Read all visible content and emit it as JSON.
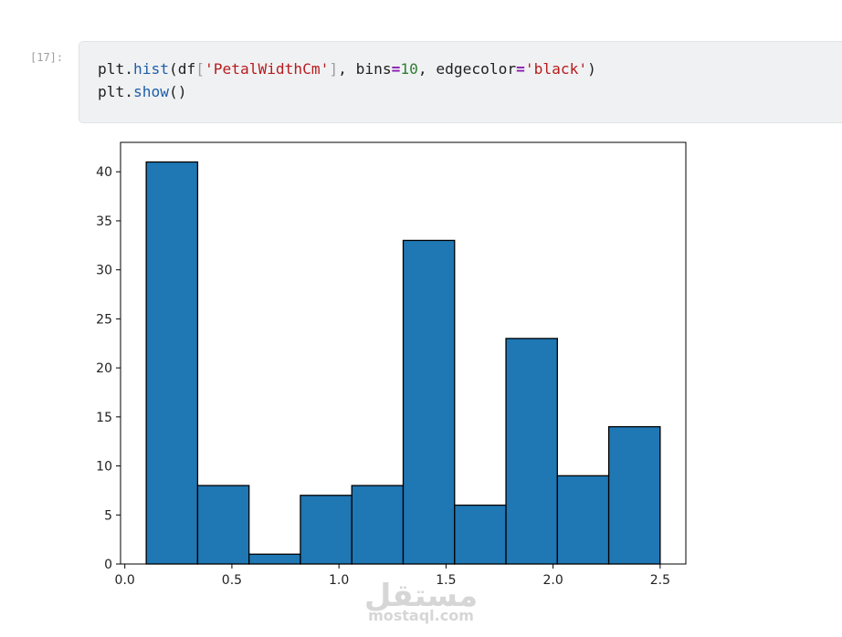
{
  "cell": {
    "prompt": "[17]:",
    "line1": {
      "p1": "plt.",
      "fn1": "hist",
      "p2": "(df",
      "b1": "[",
      "s1": "'PetalWidthCm'",
      "b2": "]",
      "p3": ", bins",
      "op1": "=",
      "n1": "10",
      "p4": ", edgecolor",
      "op2": "=",
      "s2": "'black'",
      "p5": ")"
    },
    "line2": {
      "p1": "plt.",
      "fn1": "show",
      "p2": "()"
    }
  },
  "watermark": {
    "arabic": "مستقل",
    "latin": "mostaql.com"
  },
  "chart_data": {
    "type": "bar",
    "title": "",
    "xlabel": "",
    "ylabel": "",
    "bin_edges": [
      0.1,
      0.34,
      0.58,
      0.82,
      1.06,
      1.3,
      1.54,
      1.78,
      2.02,
      2.26,
      2.5
    ],
    "values": [
      41,
      8,
      1,
      7,
      8,
      33,
      6,
      23,
      9,
      14
    ],
    "xlim": [
      -0.02,
      2.62
    ],
    "ylim": [
      0,
      43
    ],
    "xticks": [
      0.0,
      0.5,
      1.0,
      1.5,
      2.0,
      2.5
    ],
    "xtick_labels": [
      "0.0",
      "0.5",
      "1.0",
      "1.5",
      "2.0",
      "2.5"
    ],
    "yticks": [
      0,
      5,
      10,
      15,
      20,
      25,
      30,
      35,
      40
    ],
    "ytick_labels": [
      "0",
      "5",
      "10",
      "15",
      "20",
      "25",
      "30",
      "35",
      "40"
    ],
    "bar_color": "#1f77b4",
    "edge_color": "#000000",
    "grid": false
  }
}
